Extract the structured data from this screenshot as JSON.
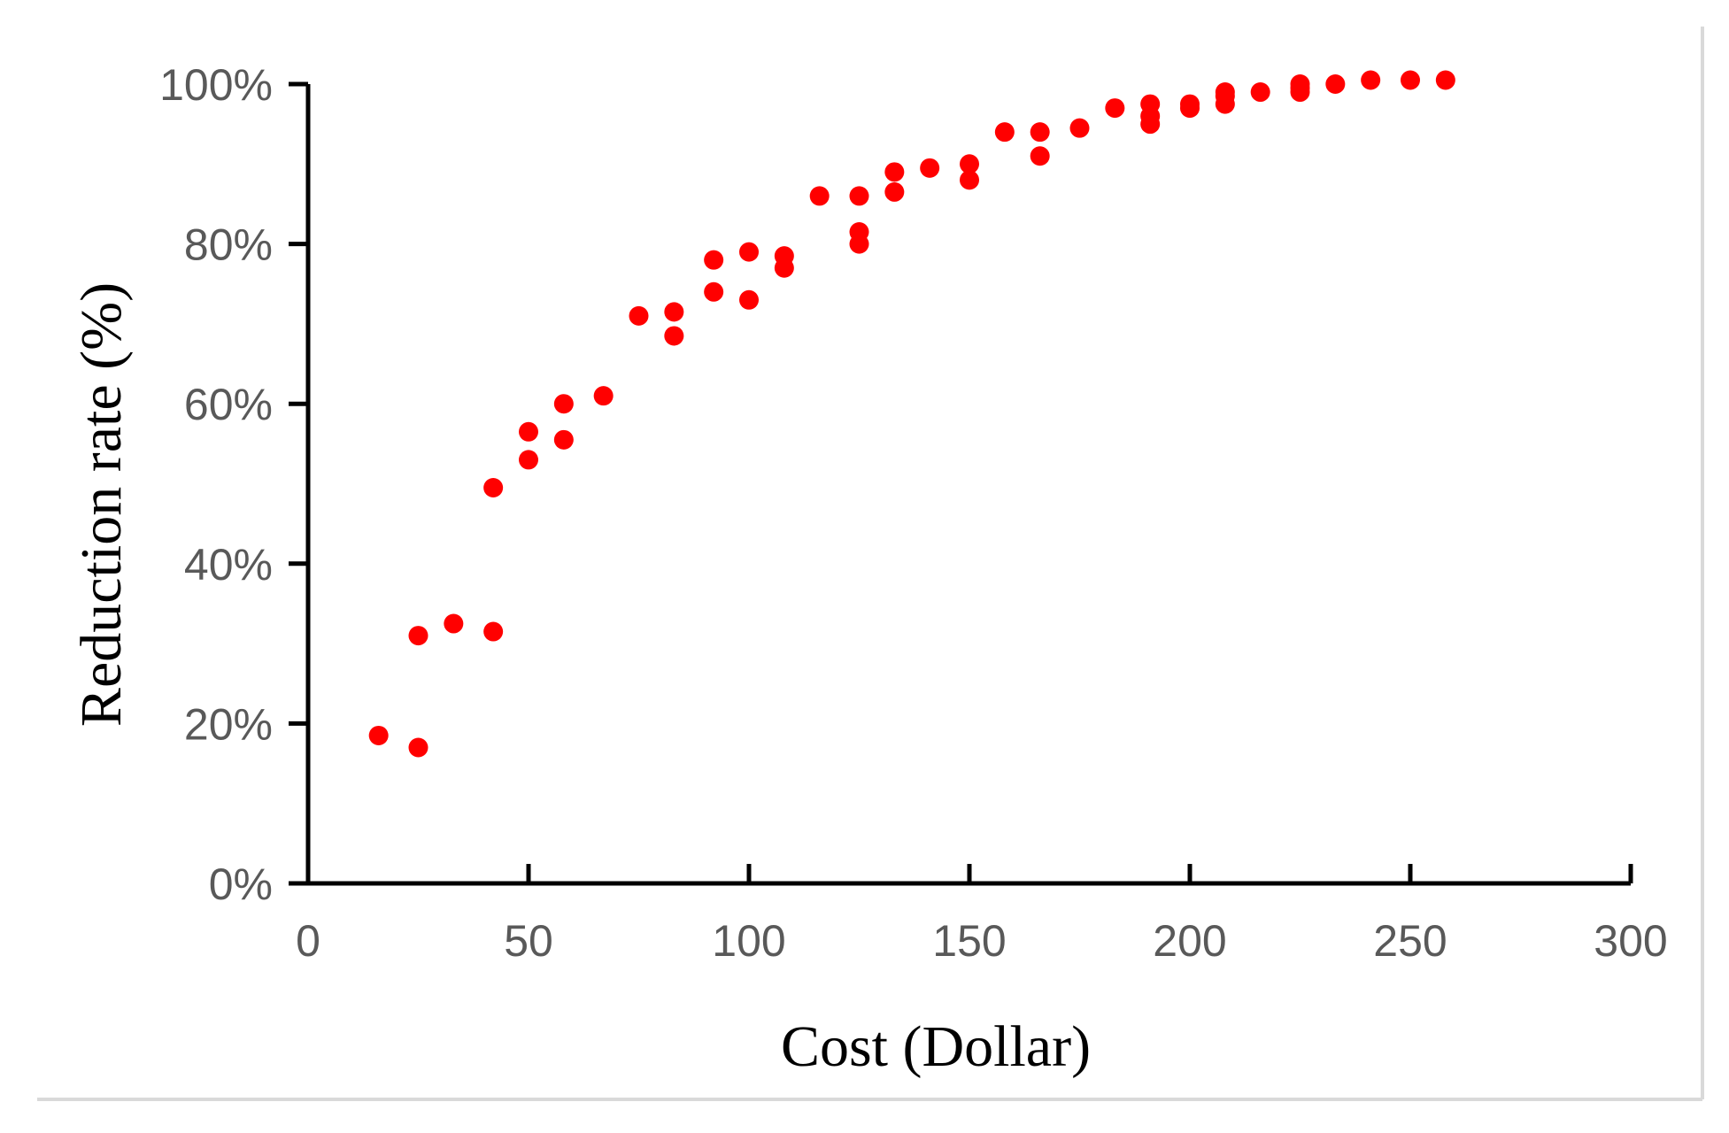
{
  "chart_data": {
    "type": "scatter",
    "title": "",
    "xlabel": "Cost (Dollar)",
    "ylabel": "Reduction rate (%)",
    "xlim": [
      0,
      300
    ],
    "ylim": [
      0,
      100
    ],
    "x_ticks": [
      "0",
      "50",
      "100",
      "150",
      "200",
      "250",
      "300"
    ],
    "y_ticks": [
      "0%",
      "20%",
      "40%",
      "60%",
      "80%",
      "100%"
    ],
    "grid": false,
    "legend": "none",
    "marker_color": "#ff0000",
    "series": [
      {
        "points": [
          [
            16,
            18.5
          ],
          [
            25,
            17
          ],
          [
            25,
            31
          ],
          [
            33,
            32.5
          ],
          [
            42,
            49.5
          ],
          [
            42,
            31.5
          ],
          [
            50,
            56.5
          ],
          [
            50,
            53
          ],
          [
            58,
            60
          ],
          [
            58,
            55.5
          ],
          [
            67,
            61
          ],
          [
            75,
            71
          ],
          [
            83,
            71.5
          ],
          [
            83,
            68.5
          ],
          [
            92,
            78
          ],
          [
            92,
            74
          ],
          [
            100,
            79
          ],
          [
            100,
            73
          ],
          [
            108,
            78.5
          ],
          [
            108,
            77
          ],
          [
            116,
            86
          ],
          [
            125,
            86
          ],
          [
            125,
            81.5
          ],
          [
            125,
            80
          ],
          [
            133,
            89
          ],
          [
            133,
            86.5
          ],
          [
            141,
            89.5
          ],
          [
            150,
            90
          ],
          [
            150,
            88
          ],
          [
            158,
            94
          ],
          [
            166,
            94
          ],
          [
            166,
            91
          ],
          [
            175,
            94.5
          ],
          [
            183,
            97
          ],
          [
            191,
            97.5
          ],
          [
            191,
            96
          ],
          [
            191,
            95
          ],
          [
            200,
            97.5
          ],
          [
            200,
            97
          ],
          [
            208,
            99
          ],
          [
            208,
            98.5
          ],
          [
            208,
            97.5
          ],
          [
            216,
            99
          ],
          [
            225,
            100
          ],
          [
            225,
            99.5
          ],
          [
            225,
            99
          ],
          [
            233,
            100
          ],
          [
            241,
            100.5
          ],
          [
            250,
            100.5
          ],
          [
            258,
            100.5
          ]
        ]
      }
    ]
  }
}
